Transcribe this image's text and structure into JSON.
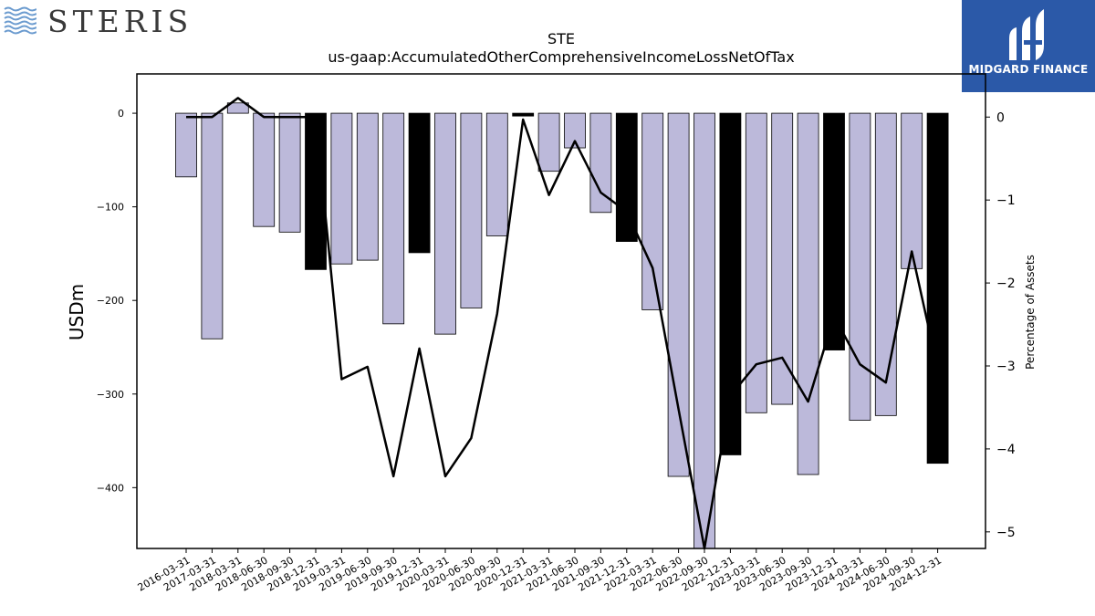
{
  "logos": {
    "left_text": "STERIS",
    "right_text": "MIDGARD FINANCE"
  },
  "chart_data": {
    "type": "bar",
    "title": "STE",
    "subtitle": "us-gaap:AccumulatedOtherComprehensiveIncomeLossNetOfTax",
    "ylabel": "USDm",
    "y2label": "Percentage of Assets",
    "ylim": [
      -465,
      42
    ],
    "y2lim": [
      -5.2,
      0.52
    ],
    "yticks": [
      0,
      -100,
      -200,
      -300,
      -400
    ],
    "y2ticks": [
      0,
      -1,
      -2,
      -3,
      -4,
      -5
    ],
    "categories": [
      "2016-03-31",
      "2017-03-31",
      "2018-03-31",
      "2018-06-30",
      "2018-09-30",
      "2018-12-31",
      "2019-03-31",
      "2019-06-30",
      "2019-09-30",
      "2019-12-31",
      "2020-03-31",
      "2020-06-30",
      "2020-09-30",
      "2020-12-31",
      "2021-03-31",
      "2021-06-30",
      "2021-09-30",
      "2021-12-31",
      "2022-03-31",
      "2022-06-30",
      "2022-09-30",
      "2022-12-31",
      "2023-03-31",
      "2023-06-30",
      "2023-09-30",
      "2023-12-31",
      "2024-03-31",
      "2024-06-30",
      "2024-09-30",
      "2024-12-31"
    ],
    "series": [
      {
        "values": [
          -68,
          -241,
          11,
          -121,
          -127,
          -167,
          -161,
          -157,
          -225,
          -149,
          -236,
          -208,
          -131,
          -3,
          -62,
          -37,
          -106,
          -137,
          -210,
          -388,
          -465,
          -365,
          -320,
          -311,
          -386,
          -253,
          -328,
          -323,
          -166,
          -374
        ],
        "colors": [
          "#bcb9da",
          "#bcb9da",
          "#bcb9da",
          "#bcb9da",
          "#bcb9da",
          "#000000",
          "#bcb9da",
          "#bcb9da",
          "#bcb9da",
          "#000000",
          "#bcb9da",
          "#bcb9da",
          "#bcb9da",
          "#000000",
          "#bcb9da",
          "#bcb9da",
          "#bcb9da",
          "#000000",
          "#bcb9da",
          "#bcb9da",
          "#bcb9da",
          "#000000",
          "#bcb9da",
          "#bcb9da",
          "#bcb9da",
          "#000000",
          "#bcb9da",
          "#bcb9da",
          "#bcb9da",
          "#000000"
        ]
      },
      {
        "type": "line",
        "axis": "right",
        "color": "#000000",
        "values": [
          0.0,
          0.0,
          0.23,
          0.0,
          0.0,
          0.0,
          -3.16,
          -3.01,
          -4.33,
          -2.79,
          -4.33,
          -3.87,
          -2.37,
          -0.03,
          -0.94,
          -0.29,
          -0.91,
          -1.14,
          -1.82,
          -3.52,
          -5.2,
          -3.36,
          -2.98,
          -2.9,
          -3.43,
          -2.4,
          -2.98,
          -3.2,
          -1.62,
          -3.03
        ]
      }
    ]
  }
}
